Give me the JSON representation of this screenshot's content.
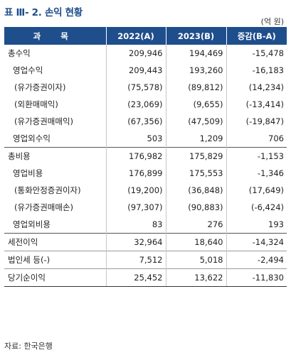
{
  "title": "표 Ⅲ- 2. 손익 현황",
  "unit": "(억 원)",
  "headers": [
    "과 목",
    "2022(A)",
    "2023(B)",
    "증감(B-A)"
  ],
  "rows": [
    {
      "label": "총수익",
      "v2022": "209,946",
      "v2023": "194,469",
      "diff": "-15,478"
    },
    {
      "label": "영업수익",
      "v2022": "209,443",
      "v2023": "193,260",
      "diff": "-16,183"
    },
    {
      "label": "(유가증권이자)",
      "v2022": "(75,578)",
      "v2023": "(89,812)",
      "diff": "(14,234)"
    },
    {
      "label": "(외환매매익)",
      "v2022": "(23,069)",
      "v2023": "(9,655)",
      "diff": "(-13,414)"
    },
    {
      "label": "(유가증권매매익)",
      "v2022": "(67,356)",
      "v2023": "(47,509)",
      "diff": "(-19,847)"
    },
    {
      "label": "영업외수익",
      "v2022": "503",
      "v2023": "1,209",
      "diff": "706"
    },
    {
      "label": "총비용",
      "v2022": "176,982",
      "v2023": "175,829",
      "diff": "-1,153"
    },
    {
      "label": "영업비용",
      "v2022": "176,899",
      "v2023": "175,553",
      "diff": "-1,346"
    },
    {
      "label": "(통화안정증권이자)",
      "v2022": "(19,200)",
      "v2023": "(36,848)",
      "diff": "(17,649)"
    },
    {
      "label": "(유가증권매매손)",
      "v2022": "(97,307)",
      "v2023": "(90,883)",
      "diff": "(-6,424)"
    },
    {
      "label": "영업외비용",
      "v2022": "83",
      "v2023": "276",
      "diff": "193"
    },
    {
      "label": "세전이익",
      "v2022": "32,964",
      "v2023": "18,640",
      "diff": "-14,324"
    },
    {
      "label": "법인세 등(-)",
      "v2022": "7,512",
      "v2023": "5,018",
      "diff": "-2,494"
    },
    {
      "label": "당기순이익",
      "v2022": "25,452",
      "v2023": "13,622",
      "diff": "-11,830"
    }
  ],
  "source": "자료: 한국은행"
}
